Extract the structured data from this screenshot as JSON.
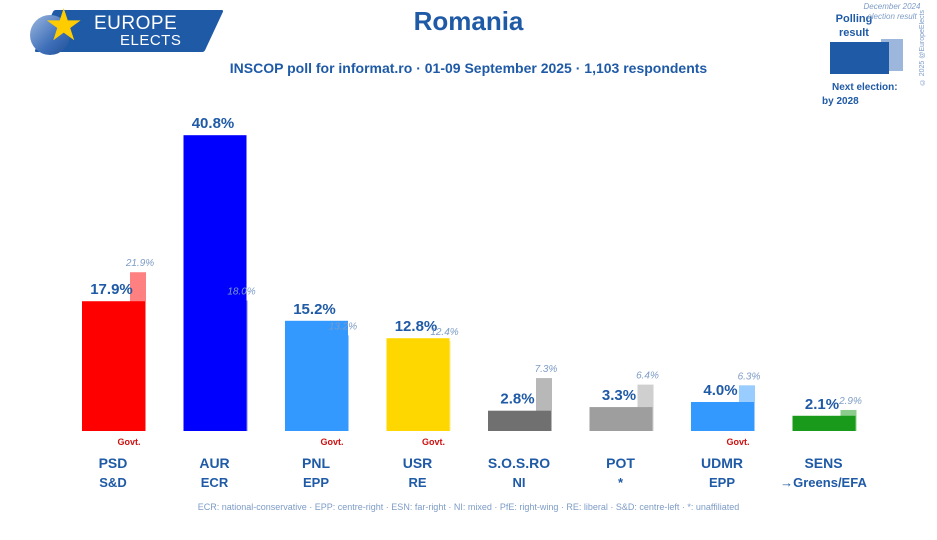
{
  "brand": {
    "line1": "EUROPE",
    "line2": "ELECTS"
  },
  "title": "Romania",
  "subtitle": "INSCOP poll for informat.ro · 01-09 September 2025 · 1,103 respondents",
  "legend": {
    "poll_label": "Polling result",
    "prev_label": "December 2024 election result",
    "copyright": "© 2025 @EuropeElects",
    "next_election_label": "Next election:",
    "next_election_value": "by 2028",
    "poll_color": "#1f5aa6",
    "prev_color": "#9db7dc"
  },
  "footnote": "ECR: national-conservative · EPP: centre-right · ESN: far-right · NI: mixed · PfE: right-wing · RE: liberal · S&D: centre-left · *: unaffiliated",
  "chart_data": {
    "type": "bar",
    "title": "Romania",
    "categories": [
      "PSD",
      "AUR",
      "PNL",
      "USR",
      "S.O.S.RO",
      "POT",
      "UDMR",
      "SENS"
    ],
    "groups": [
      "S&D",
      "ECR",
      "EPP",
      "RE",
      "NI",
      "*",
      "EPP",
      "→Greens/EFA"
    ],
    "government": [
      true,
      false,
      true,
      true,
      false,
      false,
      true,
      false
    ],
    "government_label": "Govt.",
    "series": [
      {
        "name": "Polling result",
        "values": [
          17.9,
          40.8,
          15.2,
          12.8,
          2.8,
          3.3,
          4.0,
          2.1
        ]
      },
      {
        "name": "December 2024 election result",
        "values": [
          21.9,
          18.0,
          13.2,
          12.4,
          7.3,
          6.4,
          6.3,
          2.9
        ]
      }
    ],
    "value_labels": [
      "17.9%",
      "40.8%",
      "15.2%",
      "12.8%",
      "2.8%",
      "3.3%",
      "4.0%",
      "2.1%"
    ],
    "prev_labels": [
      "21.9%",
      "18.0%",
      "13.2%",
      "12.4%",
      "7.3%",
      "6.4%",
      "6.3%",
      "2.9%"
    ],
    "colors": [
      "#ff0000",
      "#0000ff",
      "#3399ff",
      "#ffd700",
      "#707070",
      "#9e9e9e",
      "#3399ff",
      "#1a9a1a"
    ],
    "prev_colors": [
      "#ff8080",
      "#8080ff",
      "#99ccff",
      "#ffeb80",
      "#b8b8b8",
      "#cfcfcf",
      "#99ccff",
      "#8ccc8c"
    ],
    "ylim": [
      0,
      45
    ],
    "grid": false,
    "legend_position": "top-right"
  }
}
